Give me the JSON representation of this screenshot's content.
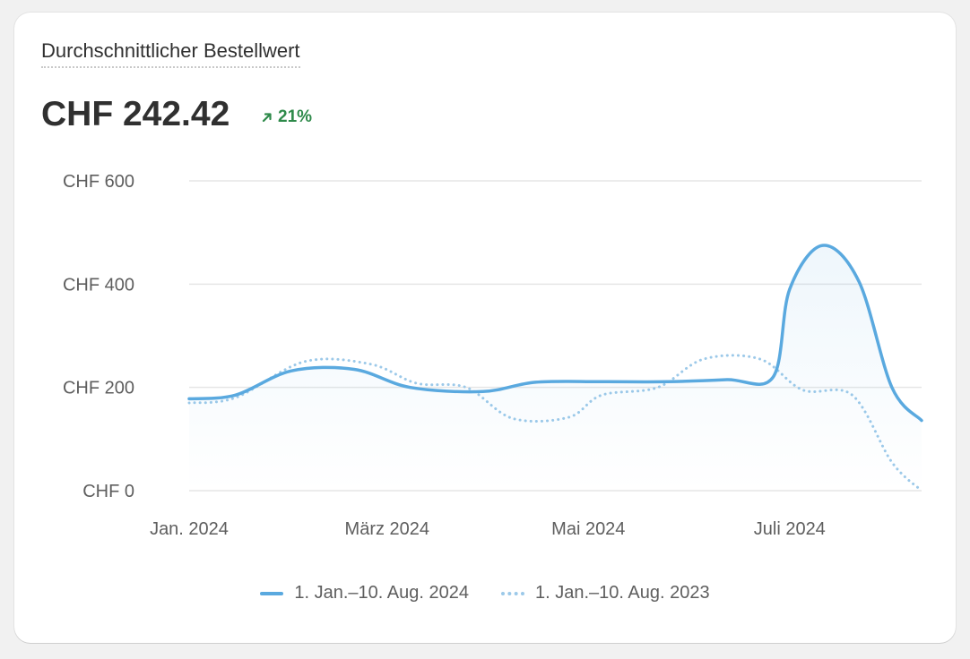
{
  "card": {
    "title": "Durchschnittlicher Bestellwert",
    "value": "CHF 242.42",
    "delta": "21%",
    "delta_icon": "arrow-up-right-icon",
    "delta_color": "#2e8a4a"
  },
  "chart_data": {
    "type": "line",
    "title": "",
    "xlabel": "",
    "ylabel": "",
    "ylim": [
      0,
      600
    ],
    "y_ticks": [
      0,
      200,
      400,
      600
    ],
    "y_tick_labels": [
      "CHF 0",
      "CHF 200",
      "CHF 400",
      "CHF 600"
    ],
    "x_tick_labels": [
      "Jan. 2024",
      "März 2024",
      "Mai 2024",
      "Juli 2024"
    ],
    "x_tick_dates": [
      "2024-01-01",
      "2024-03-01",
      "2024-05-01",
      "2024-07-01"
    ],
    "x_range": [
      "2024-01-01",
      "2024-08-10"
    ],
    "grid": true,
    "legend_position": "bottom",
    "series": [
      {
        "name": "1. Jan.–10. Aug. 2024",
        "style": "solid",
        "color": "#5aa9df",
        "fill": true,
        "points": [
          [
            "2024-01-01",
            178
          ],
          [
            "2024-01-15",
            185
          ],
          [
            "2024-02-01",
            232
          ],
          [
            "2024-02-20",
            235
          ],
          [
            "2024-03-08",
            200
          ],
          [
            "2024-03-30",
            192
          ],
          [
            "2024-04-15",
            210
          ],
          [
            "2024-05-05",
            211
          ],
          [
            "2024-05-25",
            211
          ],
          [
            "2024-06-12",
            215
          ],
          [
            "2024-06-26",
            220
          ],
          [
            "2024-07-01",
            390
          ],
          [
            "2024-07-11",
            475
          ],
          [
            "2024-07-22",
            405
          ],
          [
            "2024-08-01",
            200
          ],
          [
            "2024-08-10",
            136
          ]
        ]
      },
      {
        "name": "1. Jan.–10. Aug. 2023",
        "style": "dotted",
        "color": "#9cc9e9",
        "fill": false,
        "points": [
          [
            "2024-01-01",
            170
          ],
          [
            "2024-01-15",
            180
          ],
          [
            "2024-02-05",
            250
          ],
          [
            "2024-02-25",
            245
          ],
          [
            "2024-03-10",
            208
          ],
          [
            "2024-03-25",
            200
          ],
          [
            "2024-04-08",
            140
          ],
          [
            "2024-04-25",
            142
          ],
          [
            "2024-05-05",
            185
          ],
          [
            "2024-05-22",
            200
          ],
          [
            "2024-06-05",
            255
          ],
          [
            "2024-06-22",
            255
          ],
          [
            "2024-07-05",
            195
          ],
          [
            "2024-07-20",
            185
          ],
          [
            "2024-08-01",
            55
          ],
          [
            "2024-08-10",
            0
          ]
        ]
      }
    ]
  }
}
